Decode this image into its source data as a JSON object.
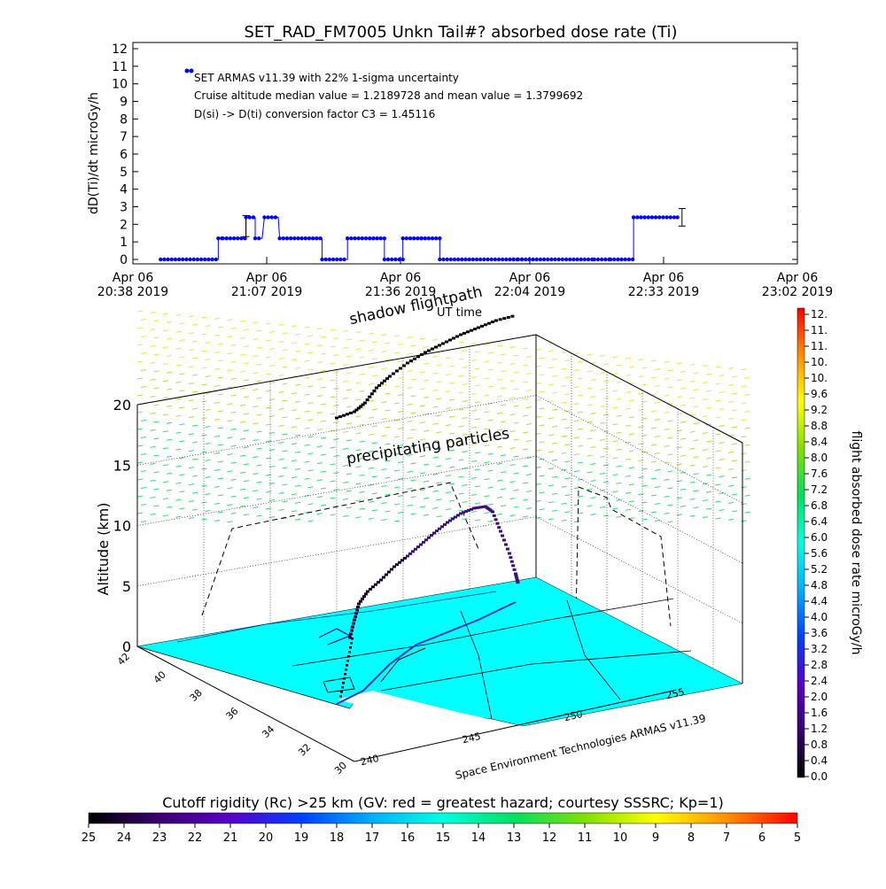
{
  "title": "SET_RAD_FM7005  Unkn Tail#? absorbed dose rate (Ti)",
  "chart_data": [
    {
      "type": "line",
      "ylabel": "dD(Ti)/dt microGy/h",
      "xlabel": "UT time",
      "ylim": [
        0,
        12
      ],
      "yticks": [
        0,
        1,
        2,
        3,
        4,
        5,
        6,
        7,
        8,
        9,
        10,
        11,
        12
      ],
      "xlim_min": [
        0,
        144
      ],
      "xticks": [
        {
          "min": 0,
          "line1": "Apr 06",
          "line2": "20:38 2019"
        },
        {
          "min": 29,
          "line1": "Apr 06",
          "line2": "21:07 2019"
        },
        {
          "min": 58,
          "line1": "Apr 06",
          "line2": "21:36 2019"
        },
        {
          "min": 86,
          "line1": "Apr 06",
          "line2": "22:04 2019"
        },
        {
          "min": 115,
          "line1": "Apr 06",
          "line2": "22:33 2019"
        },
        {
          "min": 144,
          "line1": "Apr 06",
          "line2": "23:02 2019"
        }
      ],
      "annotations": [
        "SET ARMAS v11.39 with 22% 1-sigma uncertainty",
        "Cruise altitude median value = 1.2189728 and mean value = 1.3799692",
        "D(si) -> D(ti) conversion factor C3 = 1.45116"
      ],
      "series": [
        {
          "color": "#0000ff",
          "segments": [
            {
              "from": 6,
              "to": 18.5,
              "value": 0
            },
            {
              "from": 18.5,
              "to": 19.5,
              "value": 1.2
            },
            {
              "from": 19.5,
              "to": 24.5,
              "value": 1.2
            },
            {
              "from": 24.5,
              "to": 26.5,
              "value": 2.4
            },
            {
              "from": 26.5,
              "to": 28,
              "value": 1.2
            },
            {
              "from": 28.5,
              "to": 31.5,
              "value": 2.4
            },
            {
              "from": 31.8,
              "to": 41,
              "value": 1.2
            },
            {
              "from": 41,
              "to": 46.5,
              "value": 0
            },
            {
              "from": 46.5,
              "to": 54.5,
              "value": 1.2
            },
            {
              "from": 54.5,
              "to": 58.5,
              "value": 0
            },
            {
              "from": 58.5,
              "to": 62.5,
              "value": 1.2
            },
            {
              "from": 62.5,
              "to": 66.5,
              "value": 1.2
            },
            {
              "from": 66.5,
              "to": 82.5,
              "value": 0
            },
            {
              "from": 82.5,
              "to": 83.5,
              "value": 0
            },
            {
              "from": 83.5,
              "to": 84.3,
              "value": 0
            },
            {
              "from": 84.3,
              "to": 100,
              "value": 0
            },
            {
              "from": 100,
              "to": 103.5,
              "value": 0
            },
            {
              "from": 103.5,
              "to": 108.5,
              "value": 0
            },
            {
              "from": 108.5,
              "to": 118,
              "value": 2.4
            },
            {
              "from": 118,
              "to": 118.1,
              "value": 2.4
            }
          ],
          "legend_marker": {
            "min": 3,
            "value": 10.5
          },
          "error_bars": [
            {
              "min": 24.5,
              "value": 1.7,
              "low": 1.3,
              "high": 2.5
            },
            {
              "min": 119,
              "value": 2.4,
              "low": 1.9,
              "high": 2.9
            }
          ]
        }
      ]
    },
    {
      "type": "scatter",
      "ylabel": "Altitude (km)",
      "zticks": [
        0,
        5,
        10,
        15,
        20
      ],
      "lat_ticks": [
        42,
        40,
        38,
        36,
        34,
        32,
        30
      ],
      "lon_ticks": [
        240,
        245,
        250,
        255
      ],
      "labels": {
        "shadow": "shadow flightpath",
        "precip": "precipitating particles"
      },
      "credit": "Space Environment Technologies ARMAS v11.39",
      "colorbar": {
        "label": "flight absorbed dose rate microGy/h",
        "ticks": [
          "12.",
          "11.",
          "11.",
          "10.",
          "10.",
          "9.6",
          "9.2",
          "8.8",
          "8.4",
          "8.0",
          "7.6",
          "7.2",
          "6.8",
          "6.4",
          "6.0",
          "5.6",
          "5.2",
          "4.8",
          "4.4",
          "4.0",
          "3.6",
          "3.2",
          "2.8",
          "2.4",
          "2.0",
          "1.6",
          "1.2",
          "0.8",
          "0.4",
          "0.0"
        ]
      }
    },
    {
      "type": "heatmap",
      "title": "Cutoff rigidity (Rc) >25 km (GV: red = greatest hazard; courtesy SSSRC; Kp=1)",
      "ticks": [
        25,
        24,
        23,
        22,
        21,
        20,
        19,
        18,
        17,
        16,
        15,
        14,
        13,
        12,
        11,
        10,
        9,
        8,
        7,
        6,
        5
      ]
    }
  ]
}
